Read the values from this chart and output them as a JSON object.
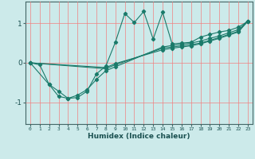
{
  "title": "",
  "xlabel": "Humidex (Indice chaleur)",
  "bg_color": "#cceaea",
  "line_color": "#1a7a6a",
  "grid_color_v": "#f08080",
  "grid_color_h": "#f08080",
  "xlim": [
    -0.5,
    23.5
  ],
  "ylim": [
    -1.55,
    1.55
  ],
  "xticks": [
    0,
    1,
    2,
    3,
    4,
    5,
    6,
    7,
    8,
    9,
    10,
    11,
    12,
    13,
    14,
    15,
    16,
    17,
    18,
    19,
    20,
    21,
    22,
    23
  ],
  "yticks": [
    -1,
    0,
    1
  ],
  "series": [
    {
      "x": [
        0,
        1,
        2,
        3,
        4,
        5,
        6,
        7,
        8,
        9,
        10,
        11,
        12,
        13,
        14,
        15,
        16,
        17,
        18,
        19,
        20,
        21,
        22,
        23
      ],
      "y": [
        0.0,
        -0.05,
        -0.55,
        -0.85,
        -0.9,
        -0.88,
        -0.72,
        -0.28,
        -0.08,
        0.52,
        1.25,
        1.02,
        1.3,
        0.6,
        1.28,
        0.48,
        0.5,
        0.52,
        0.65,
        0.72,
        0.78,
        0.82,
        0.9,
        1.05
      ]
    },
    {
      "x": [
        0,
        2,
        3,
        4,
        5,
        6,
        7,
        8,
        9,
        14,
        15,
        16,
        17,
        18,
        19,
        20,
        21,
        22,
        23
      ],
      "y": [
        0.0,
        -0.55,
        -0.72,
        -0.9,
        -0.82,
        -0.68,
        -0.42,
        -0.2,
        -0.1,
        0.4,
        0.44,
        0.47,
        0.5,
        0.55,
        0.62,
        0.68,
        0.76,
        0.84,
        1.05
      ]
    },
    {
      "x": [
        0,
        8,
        9,
        14,
        15,
        16,
        17,
        18,
        19,
        20,
        21,
        22,
        23
      ],
      "y": [
        0.0,
        -0.15,
        -0.05,
        0.37,
        0.4,
        0.43,
        0.46,
        0.5,
        0.57,
        0.64,
        0.72,
        0.8,
        1.05
      ]
    },
    {
      "x": [
        0,
        8,
        9,
        14,
        15,
        16,
        17,
        18,
        19,
        20,
        21,
        22,
        23
      ],
      "y": [
        0.0,
        -0.12,
        -0.02,
        0.33,
        0.37,
        0.4,
        0.43,
        0.48,
        0.55,
        0.62,
        0.7,
        0.78,
        1.05
      ]
    }
  ]
}
